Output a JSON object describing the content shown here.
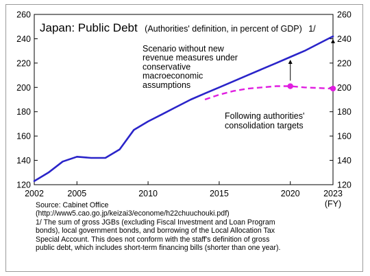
{
  "chart_data": {
    "type": "line",
    "title": "Japan: Public Debt",
    "subtitle": "(Authorities' definition, in percent of GDP)",
    "footnote_marker": "1/",
    "unit_label": "(FY)",
    "ylim": [
      120,
      260
    ],
    "xlim": [
      2002,
      2023
    ],
    "y_ticks": [
      "120",
      "140",
      "160",
      "180",
      "200",
      "220",
      "240",
      "260"
    ],
    "x_ticks": [
      "2002",
      "2005",
      "2010",
      "2015",
      "2020",
      "2023"
    ],
    "grid": false,
    "series": [
      {
        "values": [
          {
            "x": 2002,
            "y": 123
          },
          {
            "x": 2003,
            "y": 130
          },
          {
            "x": 2004,
            "y": 139
          },
          {
            "x": 2005,
            "y": 143
          },
          {
            "x": 2006,
            "y": 142
          },
          {
            "x": 2007,
            "y": 142
          },
          {
            "x": 2008,
            "y": 149
          },
          {
            "x": 2009,
            "y": 165
          },
          {
            "x": 2010,
            "y": 172
          },
          {
            "x": 2011,
            "y": 178
          },
          {
            "x": 2012,
            "y": 184
          },
          {
            "x": 2013,
            "y": 190
          },
          {
            "x": 2014,
            "y": 195
          },
          {
            "x": 2015,
            "y": 200
          },
          {
            "x": 2016,
            "y": 205
          },
          {
            "x": 2017,
            "y": 210
          },
          {
            "x": 2018,
            "y": 215
          },
          {
            "x": 2019,
            "y": 220
          },
          {
            "x": 2020,
            "y": 225
          },
          {
            "x": 2021,
            "y": 230
          },
          {
            "x": 2022,
            "y": 236
          },
          {
            "x": 2023,
            "y": 242
          }
        ],
        "color": "#2a24c9",
        "style": "solid"
      },
      {
        "values": [
          {
            "x": 2014,
            "y": 190
          },
          {
            "x": 2015,
            "y": 194
          },
          {
            "x": 2016,
            "y": 197
          },
          {
            "x": 2017,
            "y": 199
          },
          {
            "x": 2018,
            "y": 200
          },
          {
            "x": 2019,
            "y": 201
          },
          {
            "x": 2020,
            "y": 201
          },
          {
            "x": 2021,
            "y": 200
          },
          {
            "x": 2022,
            "y": 199.5
          },
          {
            "x": 2023,
            "y": 199
          }
        ],
        "color": "#e01ee0",
        "style": "dashed",
        "markers": [
          {
            "x": 2020,
            "y": 201
          },
          {
            "x": 2023,
            "y": 199
          }
        ]
      }
    ],
    "annotations": {
      "scenario": [
        "Scenario without new",
        "revenue measures under",
        "conservative",
        "macroeconomic",
        "assumptions"
      ],
      "consolidation": [
        "Following authorities'",
        "consolidation targets"
      ]
    },
    "arrows": [
      {
        "x": 2020,
        "from": 201,
        "to": 225
      },
      {
        "x": 2023,
        "from": 199,
        "to": 242
      }
    ]
  },
  "notes": {
    "source": "Source: Cabinet Office",
    "url": "(http://www5.cao.go.jp/keizai3/econome/h22chuuchouki.pdf)",
    "footnote_lines": [
      "1/ The sum of gross JGBs (excluding Fiscal Investment and Loan Program",
      "bonds), local government bonds, and  borrowing of the Local Allocation Tax",
      "Special Account.  This does not conform with the staff's definition of gross",
      "public debt, which includes short-term financing bills (shorter than one year)."
    ]
  }
}
